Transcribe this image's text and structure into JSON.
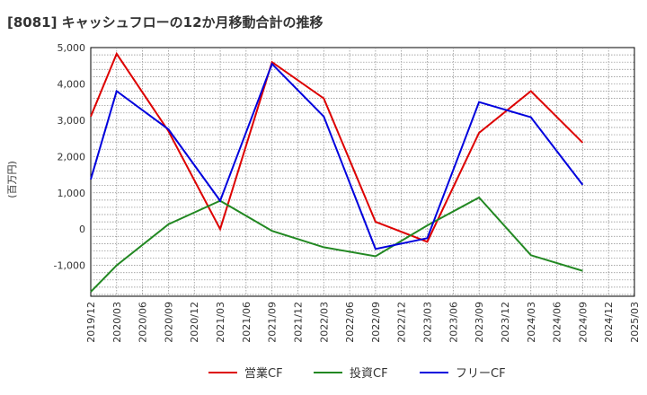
{
  "chart_data": {
    "type": "line",
    "title": "[8081]  キャッシュフローの12か月移動合計の推移",
    "ylabel": "(百万円)",
    "xlabel": "",
    "ylim": [
      -1850,
      5000
    ],
    "yticks": [
      -1000,
      0,
      1000,
      2000,
      3000,
      4000,
      5000
    ],
    "ytick_labels": [
      "-1,000",
      "0",
      "1,000",
      "2,000",
      "3,000",
      "4,000",
      "5,000"
    ],
    "categories": [
      "2019/12",
      "2020/03",
      "2020/06",
      "2020/09",
      "2020/12",
      "2021/03",
      "2021/06",
      "2021/09",
      "2021/12",
      "2022/03",
      "2022/06",
      "2022/09",
      "2022/12",
      "2023/03",
      "2023/06",
      "2023/09",
      "2023/12",
      "2024/03",
      "2024/06",
      "2024/09",
      "2024/12",
      "2025/03"
    ],
    "series": [
      {
        "name": "営業CF",
        "color": "#dd0000",
        "values": [
          3100,
          4830,
          null,
          2700,
          null,
          0,
          null,
          4600,
          null,
          3600,
          null,
          200,
          null,
          -350,
          null,
          2650,
          null,
          3800,
          null,
          2380,
          null,
          null
        ]
      },
      {
        "name": "投資CF",
        "color": "#228822",
        "values": [
          -1730,
          -1000,
          null,
          130,
          null,
          780,
          null,
          -50,
          null,
          -500,
          null,
          -750,
          null,
          100,
          null,
          870,
          null,
          -720,
          null,
          -1150,
          null,
          null
        ]
      },
      {
        "name": "フリーCF",
        "color": "#0000dd",
        "values": [
          1370,
          3800,
          null,
          2750,
          null,
          780,
          null,
          4550,
          null,
          3100,
          null,
          -550,
          null,
          -250,
          null,
          3500,
          null,
          3080,
          null,
          1220,
          null,
          null
        ]
      }
    ],
    "grid": true,
    "legend_position": "bottom-center"
  }
}
